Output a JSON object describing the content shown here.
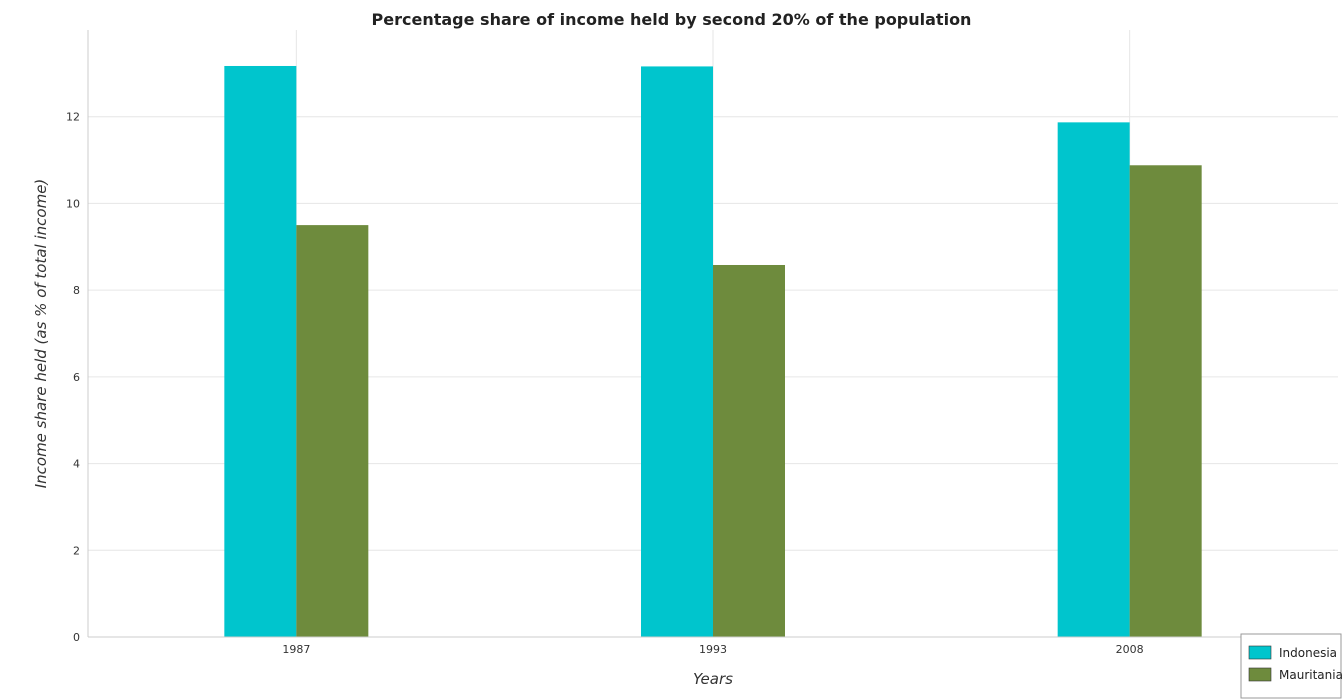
{
  "chart_data": {
    "type": "bar",
    "title": "Percentage share of income held by second 20% of the population",
    "xlabel": "Years",
    "ylabel": "Income share held (as % of total income)",
    "categories": [
      "1987",
      "1993",
      "2008"
    ],
    "series": [
      {
        "name": "Indonesia",
        "color": "#00c5cd",
        "values": [
          13.17,
          13.16,
          11.87
        ]
      },
      {
        "name": "Mauritania",
        "color": "#6e8b3d",
        "values": [
          9.5,
          8.58,
          10.88
        ]
      }
    ],
    "ylim": [
      0,
      14
    ],
    "yticks": [
      0,
      2,
      4,
      6,
      8,
      10,
      12
    ],
    "ytick_labels": [
      "0",
      "2",
      "4",
      "6",
      "8",
      "10",
      "12"
    ],
    "grid": true,
    "legend_position": "bottom-right"
  }
}
